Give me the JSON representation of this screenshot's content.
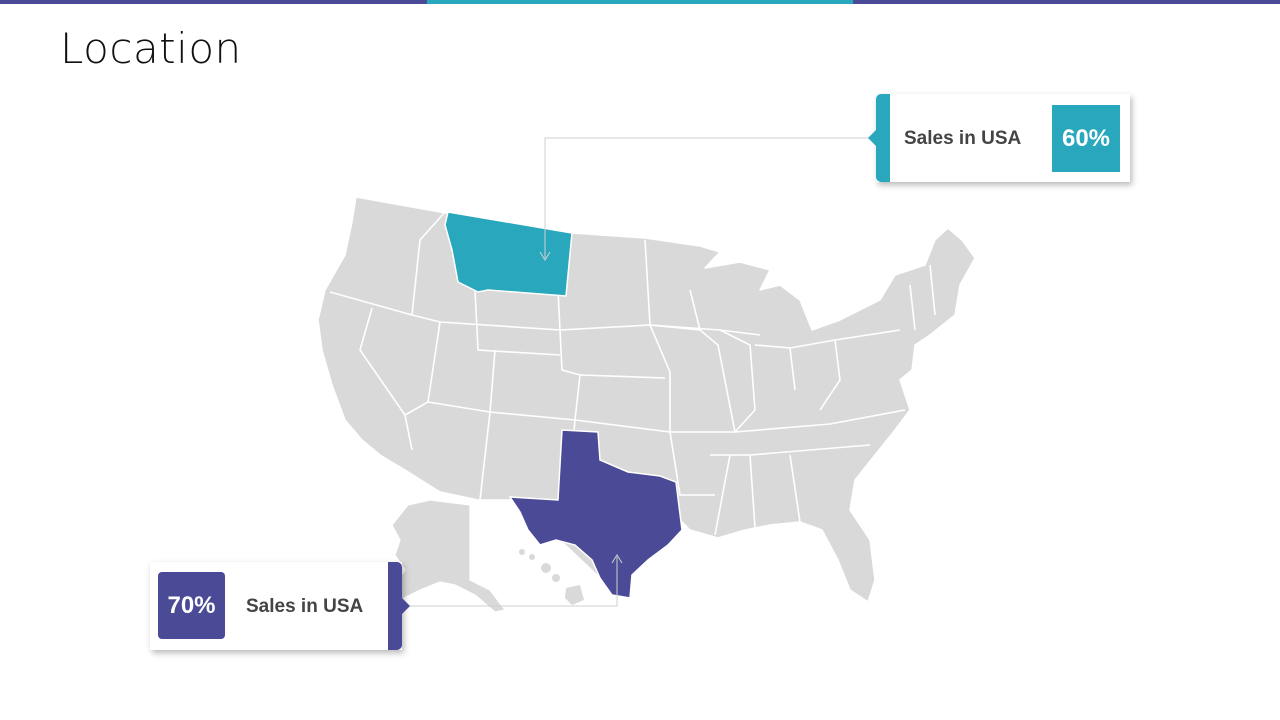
{
  "page": {
    "title": "Location"
  },
  "colors": {
    "accent_purple": "#4a4a96",
    "accent_teal": "#29a8bd",
    "state_fill": "#d9d9d9",
    "state_border": "#ffffff",
    "topbar": [
      "#4a4a96",
      "#29a8bd",
      "#4a4a96"
    ]
  },
  "map": {
    "highlighted_states": [
      {
        "name": "Montana",
        "color": "#29a8bd"
      },
      {
        "name": "Texas",
        "color": "#4a4a96"
      }
    ]
  },
  "callouts": {
    "montana": {
      "label": "Sales in USA",
      "value": "60%"
    },
    "texas": {
      "label": "Sales in USA",
      "value": "70%"
    }
  }
}
